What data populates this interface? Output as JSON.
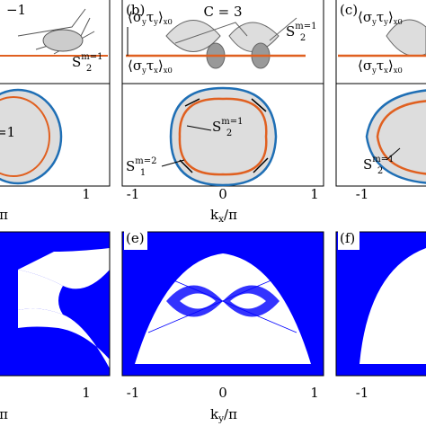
{
  "left_panel": {
    "top_partial_label": "−1",
    "state_label": {
      "base": "S",
      "sub": "2",
      "sup": "m=1"
    },
    "lower_partial_label": "=1",
    "top_tick": "1",
    "top_axis_partial": "π",
    "bottom_tick": "1",
    "bottom_axis_partial": "π"
  },
  "panel_b": {
    "label": "(b)",
    "chern": "C = 3",
    "spin_labels": [
      [
        "⟨σ",
        "y",
        "τ",
        "y",
        "⟩",
        "x0"
      ],
      [
        "⟨σ",
        "y",
        "τ",
        "x",
        "⟩",
        "x0"
      ]
    ],
    "state_label_top": {
      "base": "S",
      "sub": "2",
      "sup": "m=1"
    },
    "state_label_inner": {
      "base": "S",
      "sub": "2",
      "sup": "m=1"
    },
    "state_label_outer": {
      "base": "S",
      "sub": "1",
      "sup": "m=2"
    },
    "xticks": [
      "-1",
      "0",
      "1"
    ],
    "xlabel": [
      "k",
      "x",
      "/π"
    ]
  },
  "panel_c": {
    "label": "(c)",
    "spin_labels": [
      [
        "⟨σ",
        "y",
        "τ",
        "y",
        "⟩",
        "x0"
      ],
      [
        "⟨σ",
        "y",
        "τ",
        "x",
        "⟩",
        "x0"
      ]
    ],
    "state_label": {
      "base": "S",
      "sub": "2",
      "sup": "m=1"
    },
    "xtick": "-1"
  },
  "panel_e": {
    "label": "(e)",
    "xticks": [
      "-1",
      "0",
      "1"
    ],
    "xlabel": [
      "k",
      "y",
      "/π"
    ]
  },
  "panel_f": {
    "label": "(f)",
    "xtick": "-1"
  }
}
